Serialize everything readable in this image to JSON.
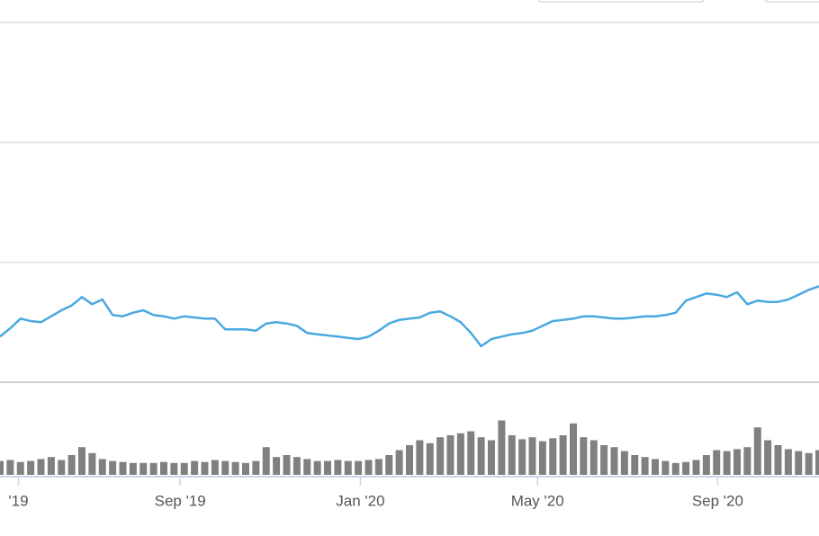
{
  "chart_data": {
    "type": "line",
    "values": [
      0.38,
      0.45,
      0.53,
      0.51,
      0.5,
      0.55,
      0.6,
      0.64,
      0.71,
      0.65,
      0.69,
      0.56,
      0.55,
      0.58,
      0.6,
      0.56,
      0.55,
      0.53,
      0.55,
      0.54,
      0.53,
      0.53,
      0.44,
      0.44,
      0.44,
      0.43,
      0.49,
      0.5,
      0.49,
      0.47,
      0.41,
      0.4,
      0.39,
      0.38,
      0.37,
      0.36,
      0.38,
      0.43,
      0.49,
      0.52,
      0.53,
      0.54,
      0.58,
      0.59,
      0.55,
      0.5,
      0.41,
      0.3,
      0.36,
      0.38,
      0.4,
      0.41,
      0.43,
      0.47,
      0.51,
      0.52,
      0.53,
      0.55,
      0.55,
      0.54,
      0.53,
      0.53,
      0.54,
      0.55,
      0.55,
      0.56,
      0.58,
      0.68,
      0.71,
      0.74,
      0.73,
      0.71,
      0.75,
      0.65,
      0.68,
      0.67,
      0.67,
      0.69,
      0.73,
      0.77,
      0.8
    ],
    "color": "#4aa8e0",
    "ylim": [
      0,
      3
    ],
    "yticks": [
      0,
      1,
      2,
      3
    ],
    "grid": true,
    "xlim": [
      0,
      80
    ],
    "xticks": [
      {
        "value": 1.8,
        "label": "'19"
      },
      {
        "value": 17.6,
        "label": "Sep '19"
      },
      {
        "value": 35.2,
        "label": "Jan '20"
      },
      {
        "value": 52.5,
        "label": "May '20"
      },
      {
        "value": 70.1,
        "label": "Sep '20"
      }
    ],
    "volume": {
      "type": "bar",
      "color": "#808080",
      "ylim": [
        0,
        80
      ],
      "values": [
        14,
        15,
        13,
        14,
        16,
        18,
        15,
        20,
        28,
        22,
        16,
        14,
        13,
        12,
        12,
        12,
        13,
        12,
        12,
        14,
        13,
        15,
        14,
        13,
        12,
        14,
        28,
        18,
        20,
        18,
        16,
        14,
        14,
        15,
        14,
        14,
        15,
        16,
        20,
        25,
        30,
        35,
        32,
        38,
        40,
        42,
        44,
        38,
        35,
        55,
        40,
        36,
        38,
        34,
        37,
        40,
        52,
        38,
        35,
        30,
        28,
        24,
        20,
        18,
        16,
        14,
        12,
        13,
        15,
        20,
        25,
        24,
        26,
        28,
        48,
        35,
        30,
        26,
        24,
        22,
        25
      ]
    }
  }
}
